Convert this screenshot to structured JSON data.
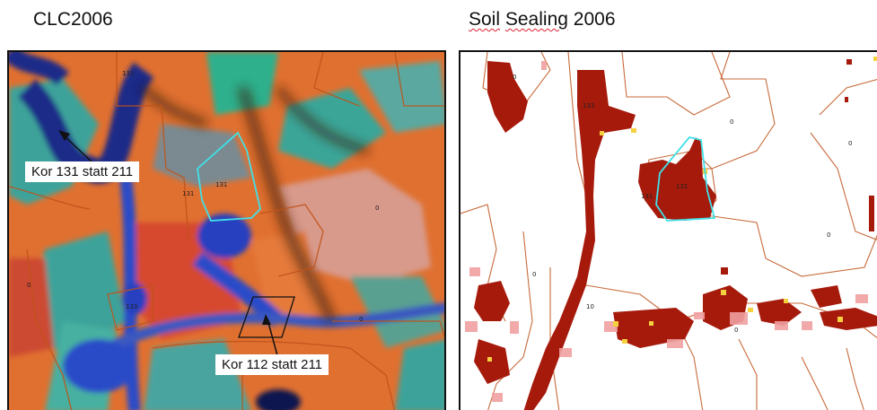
{
  "titles": {
    "left": "CLC2006",
    "right_word1": "Soil",
    "right_word2": "Sealing",
    "right_word3": "2006"
  },
  "left_map": {
    "callouts": [
      {
        "text": "Kor 131 statt 211"
      },
      {
        "text": "Kor 112 statt 211"
      }
    ],
    "zone_labels": [
      "131",
      "131",
      "131",
      "0",
      "0",
      "133",
      "0"
    ],
    "colors": {
      "agriculture_orange": "#e07030",
      "water_blue": "#2a3f9e",
      "vegetation_teal": "#3ea39a",
      "zone_outline": "#c0521a",
      "highlight_zone": "#40e0e8"
    }
  },
  "right_map": {
    "zone_labels": [
      "0",
      "133",
      "131",
      "131",
      "0",
      "0",
      "0",
      "0",
      "0",
      "10"
    ],
    "colors": {
      "sealed_dark": "#a61a0c",
      "sealed_light": "#f0a0a0",
      "sealed_yellow": "#f5d040",
      "zone_outline": "#c86a3a",
      "highlight_zone": "#40e0e8"
    }
  }
}
